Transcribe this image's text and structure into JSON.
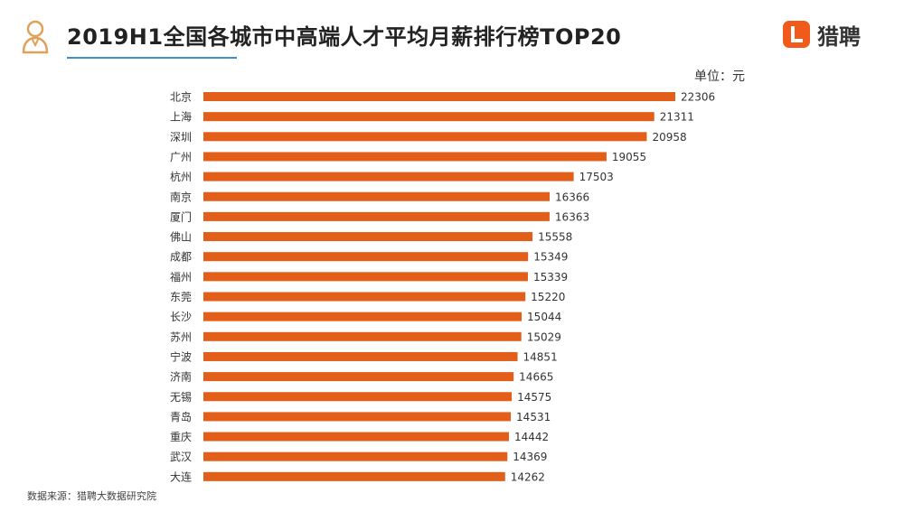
{
  "header": {
    "title": "2019H1全国各城市中高端人才平均月薪排行榜TOP20",
    "brand_name": "猎聘",
    "icon_name": "talent-person-icon",
    "brand_icon": "liepin-logo-icon"
  },
  "unit_label": "单位：元",
  "source_note": "数据来源：猎聘大数据研究院",
  "colors": {
    "bar": "#e35e19",
    "brand": "#f05a1a",
    "underline": "#3a8fd4",
    "icon": "#e0a15a"
  },
  "chart_data": {
    "type": "bar",
    "orientation": "horizontal",
    "title": "2019H1全国各城市中高端人才平均月薪排行榜TOP20",
    "unit": "单位：元",
    "categories": [
      "北京",
      "上海",
      "深圳",
      "广州",
      "杭州",
      "南京",
      "厦门",
      "佛山",
      "成都",
      "福州",
      "东莞",
      "长沙",
      "苏州",
      "宁波",
      "济南",
      "无锡",
      "青岛",
      "重庆",
      "武汉",
      "大连"
    ],
    "values": [
      22306,
      21311,
      20958,
      19055,
      17503,
      16366,
      16363,
      15558,
      15349,
      15339,
      15220,
      15044,
      15029,
      14851,
      14665,
      14575,
      14531,
      14442,
      14369,
      14262
    ],
    "data_labels": true,
    "grid": false,
    "legend": "none"
  }
}
